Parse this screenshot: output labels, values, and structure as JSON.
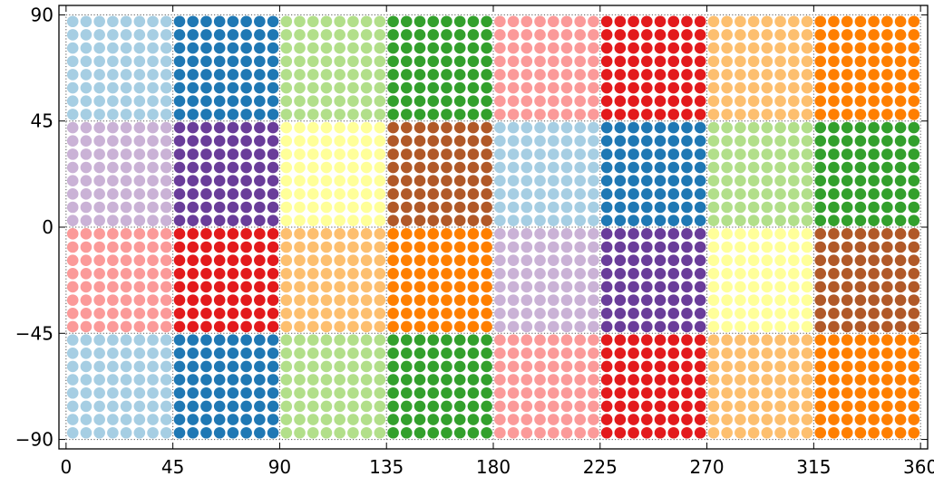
{
  "chart_data": {
    "type": "scatter",
    "title": "",
    "xlabel": "",
    "ylabel": "",
    "xlim": [
      -3,
      363
    ],
    "ylim": [
      -94,
      94
    ],
    "xticks": [
      0,
      45,
      90,
      135,
      180,
      225,
      270,
      315,
      360
    ],
    "yticks": [
      90,
      45,
      0,
      -45,
      -90
    ],
    "ytick_labels": [
      "90",
      "45",
      "0",
      "−45",
      "−90"
    ],
    "grid": true,
    "grid_style": "dotted",
    "points_per_tile": 8,
    "palette": [
      "#a6cee3",
      "#1f78b4",
      "#b2df8a",
      "#33a02c",
      "#fb9a99",
      "#e31a1c",
      "#fdbf6f",
      "#ff7f00",
      "#cab2d6",
      "#6a3d9a",
      "#ffff99",
      "#b15928"
    ],
    "tile_size_deg": 45,
    "tile_color_index": [
      [
        0,
        1,
        2,
        3,
        4,
        5,
        6,
        7
      ],
      [
        8,
        9,
        10,
        11,
        0,
        1,
        2,
        3
      ],
      [
        4,
        5,
        6,
        7,
        8,
        9,
        10,
        11
      ],
      [
        0,
        1,
        2,
        3,
        4,
        5,
        6,
        7
      ]
    ],
    "tile_row_lat_top": [
      90,
      45,
      0,
      -45
    ]
  }
}
